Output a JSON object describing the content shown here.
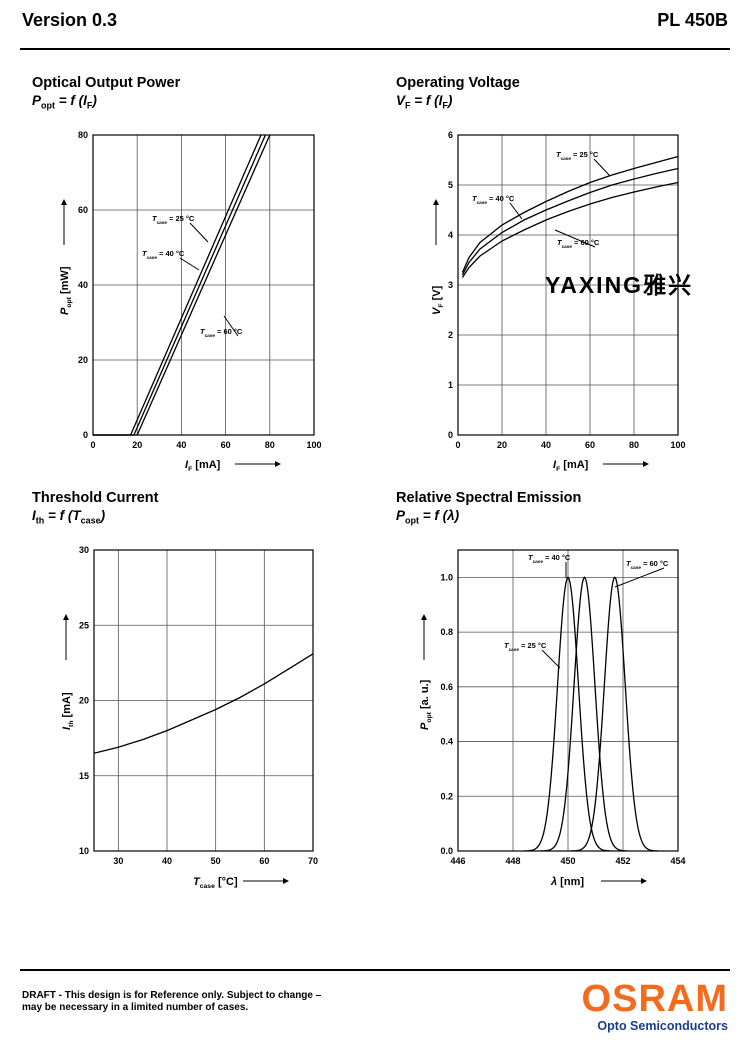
{
  "header": {
    "version": "Version 0.3",
    "product": "PL 450B"
  },
  "footer": {
    "draft_line1": "DRAFT - This design is for Reference only. Subject to change –",
    "draft_line2": "may be necessary in a limited number of cases.",
    "brand": "OSRAM",
    "tagline": "Opto Semiconductors"
  },
  "watermark": "YAXING雅兴",
  "colors": {
    "brand_orange": "#f26b1f",
    "brand_blue": "#1a3d8f",
    "ink": "#000000",
    "grid": "#555555"
  },
  "chart_data": [
    {
      "id": "optical",
      "type": "line",
      "title": "Optical Output Power",
      "subtitle": {
        "main": "P",
        "main_sub": "opt",
        "rest": " = f (I",
        "rest_sub": "F",
        "end": ")"
      },
      "xlabel": {
        "sym": "I",
        "sym_sub": "F",
        "unit": " [mA]"
      },
      "ylabel": {
        "sym": "P",
        "sym_sub": "opt",
        "unit": " [mW]"
      },
      "xlim": [
        0,
        100
      ],
      "ylim": [
        0,
        80
      ],
      "xticks": [
        0,
        20,
        40,
        60,
        80,
        100
      ],
      "yticks": [
        0,
        20,
        40,
        60,
        80
      ],
      "series": [
        {
          "name": "T = 25 °C",
          "x": [
            0,
            17,
            76
          ],
          "y": [
            0,
            0,
            80
          ]
        },
        {
          "name": "T = 40 °C",
          "x": [
            0,
            18.5,
            78
          ],
          "y": [
            0,
            0,
            80
          ]
        },
        {
          "name": "T = 60 °C",
          "x": [
            0,
            20,
            80
          ],
          "y": [
            0,
            0,
            80
          ]
        }
      ],
      "annotations": [
        {
          "sym": "T",
          "sub": "case",
          "val": " = 25 °C"
        },
        {
          "sym": "T",
          "sub": "case",
          "val": " = 40 °C"
        },
        {
          "sym": "T",
          "sub": "case",
          "val": " = 60 °C"
        }
      ]
    },
    {
      "id": "voltage",
      "type": "line",
      "title": "Operating Voltage",
      "subtitle": {
        "main": "V",
        "main_sub": "F",
        "rest": " = f (I",
        "rest_sub": "F",
        "end": ")"
      },
      "xlabel": {
        "sym": "I",
        "sym_sub": "F",
        "unit": " [mA]"
      },
      "ylabel": {
        "sym": "V",
        "sym_sub": "F",
        "unit": " [V]"
      },
      "xlim": [
        0,
        100
      ],
      "ylim": [
        0,
        6
      ],
      "xticks": [
        0,
        20,
        40,
        60,
        80,
        100
      ],
      "yticks": [
        0,
        1,
        2,
        3,
        4,
        5,
        6
      ],
      "series": [
        {
          "name": "T = 25 °C",
          "x": [
            2,
            5,
            10,
            20,
            30,
            40,
            50,
            60,
            70,
            80,
            90,
            100
          ],
          "y": [
            3.25,
            3.55,
            3.85,
            4.2,
            4.45,
            4.67,
            4.87,
            5.05,
            5.2,
            5.33,
            5.45,
            5.57
          ]
        },
        {
          "name": "T = 40 °C",
          "x": [
            2,
            5,
            10,
            20,
            30,
            40,
            50,
            60,
            70,
            80,
            90,
            100
          ],
          "y": [
            3.2,
            3.45,
            3.72,
            4.05,
            4.3,
            4.5,
            4.68,
            4.85,
            5.0,
            5.12,
            5.23,
            5.33
          ]
        },
        {
          "name": "T = 60 °C",
          "x": [
            2,
            5,
            10,
            20,
            30,
            40,
            50,
            60,
            70,
            80,
            90,
            100
          ],
          "y": [
            3.15,
            3.35,
            3.58,
            3.88,
            4.1,
            4.3,
            4.47,
            4.62,
            4.75,
            4.86,
            4.96,
            5.05
          ]
        }
      ],
      "annotations": [
        {
          "sym": "T",
          "sub": "case",
          "val": " = 25 °C"
        },
        {
          "sym": "T",
          "sub": "case",
          "val": " = 40 °C"
        },
        {
          "sym": "T",
          "sub": "case",
          "val": " = 60 °C"
        }
      ]
    },
    {
      "id": "threshold",
      "type": "line",
      "title": "Threshold Current",
      "subtitle": {
        "main": "I",
        "main_sub": "th",
        "rest": " = f (T",
        "rest_sub": "case",
        "end": ")"
      },
      "xlabel": {
        "sym": "T",
        "sym_sub": "case",
        "unit": " [°C]"
      },
      "ylabel": {
        "sym": "I",
        "sym_sub": "th",
        "unit": " [mA]"
      },
      "xlim": [
        25,
        70
      ],
      "ylim": [
        10,
        30
      ],
      "xticks": [
        30,
        40,
        50,
        60,
        70
      ],
      "yticks": [
        10,
        15,
        20,
        25,
        30
      ],
      "series": [
        {
          "name": "",
          "x": [
            25,
            30,
            35,
            40,
            45,
            50,
            55,
            60,
            65,
            70
          ],
          "y": [
            16.5,
            16.9,
            17.4,
            18.0,
            18.7,
            19.4,
            20.2,
            21.1,
            22.1,
            23.1
          ]
        }
      ],
      "annotations": []
    },
    {
      "id": "spectral",
      "type": "line",
      "title": "Relative Spectral Emission",
      "subtitle": {
        "main": "P",
        "main_sub": "opt",
        "rest": " = f (λ",
        "rest_sub": "",
        "end": ")"
      },
      "xlabel": {
        "sym": "λ",
        "sym_sub": "",
        "unit": " [nm]"
      },
      "ylabel": {
        "sym": "P",
        "sym_sub": "opt",
        "unit": " [a. u.]"
      },
      "xlim": [
        446,
        454
      ],
      "ylim": [
        0,
        1.1
      ],
      "xticks": [
        446,
        448,
        450,
        452,
        454
      ],
      "yticks": [
        0.0,
        0.2,
        0.4,
        0.6,
        0.8,
        1.0
      ],
      "ytick_labels": [
        "0.0",
        "0.2",
        "0.4",
        "0.6",
        "0.8",
        "1.0"
      ],
      "series": [
        {
          "name": "T = 25 °C",
          "peak": 450.0,
          "width": 0.38
        },
        {
          "name": "T = 40 °C",
          "peak": 450.6,
          "width": 0.38
        },
        {
          "name": "T = 60 °C",
          "peak": 451.7,
          "width": 0.38
        }
      ],
      "annotations": [
        {
          "sym": "T",
          "sub": "case",
          "val": " = 40 °C"
        },
        {
          "sym": "T",
          "sub": "case",
          "val": " = 60 °C"
        },
        {
          "sym": "T",
          "sub": "case",
          "val": " = 25 °C"
        }
      ]
    }
  ]
}
